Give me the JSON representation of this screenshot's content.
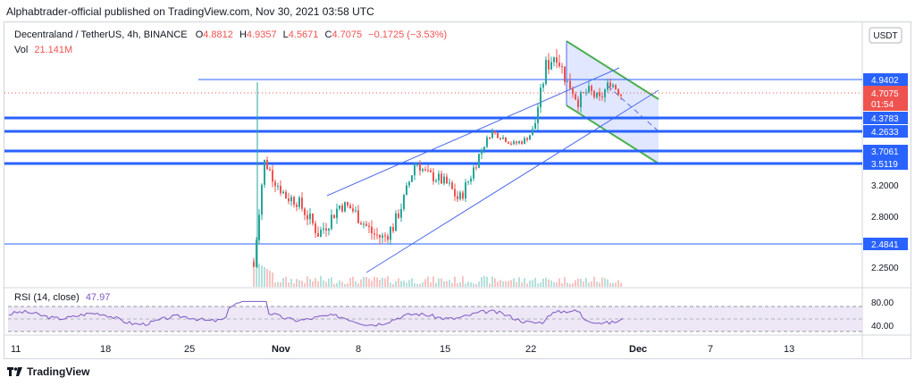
{
  "publisher_line": "Alphabtrader-official published on TradingView.com, Nov 30, 2021 03:58 UTC",
  "symbol_line": {
    "title": "Decentraland / TetherUS, 4h, BINANCE",
    "o_label": "O",
    "o_value": "4.8812",
    "h_label": "H",
    "h_value": "4.9357",
    "l_label": "L",
    "l_value": "4.5671",
    "c_label": "C",
    "c_value": "4.7075",
    "change": "−0.1725 (−3.53%)"
  },
  "volume_line": {
    "label": "Vol",
    "value": "21.141M"
  },
  "currency_button": "USDT",
  "rsi_label": {
    "name": "RSI (14, close)",
    "value": "47.97"
  },
  "rsi_axis": [
    "80.00",
    "40.00"
  ],
  "footer_brand": "TradingView",
  "colors": {
    "bull": "#26a69a",
    "bear": "#ef5350",
    "hline": "#2962ff",
    "channel": "#4f6bed",
    "flag_fill": "#dbe3ff",
    "flag_border": "#4caf50",
    "rsi_line": "#7e57c2",
    "rsi_band": "#ede7f6"
  },
  "chart_data": {
    "type": "candlestick",
    "timeframe": "4h",
    "x_ticks": [
      "11",
      "18",
      "25",
      "Nov",
      "8",
      "15",
      "22",
      "Dec",
      "7",
      "13"
    ],
    "y_ticks": [
      3.2,
      2.8,
      2.25
    ],
    "y_tick_labels": [
      "3.2000",
      "2.8000",
      "2.2500"
    ],
    "ylim": [
      2.05,
      5.35
    ],
    "horizontal_levels": [
      {
        "value": 4.9402,
        "label": "4.9402"
      },
      {
        "value": 4.3783,
        "label": "4.3783"
      },
      {
        "value": 4.2633,
        "label": "4.2633"
      },
      {
        "value": 3.7061,
        "label": "3.7061"
      },
      {
        "value": 3.5119,
        "label": "3.5119"
      },
      {
        "value": 2.4841,
        "label": "2.4841"
      }
    ],
    "current_price": {
      "value": 4.7075,
      "label": "4.7075",
      "countdown": "01:54"
    },
    "close_series_approx": [
      2.25,
      3.55,
      3.25,
      3.05,
      3.0,
      2.8,
      2.6,
      2.75,
      2.95,
      2.9,
      2.75,
      2.6,
      2.55,
      2.7,
      3.05,
      3.55,
      3.35,
      3.3,
      3.2,
      3.0,
      3.3,
      3.7,
      4.25,
      4.1,
      3.9,
      4.0,
      4.3,
      5.05,
      5.2,
      4.9,
      4.6,
      4.75,
      4.6,
      4.9,
      4.7
    ],
    "rsi": {
      "current": 47.97,
      "levels": [
        70,
        30
      ],
      "ylim": [
        20,
        90
      ]
    }
  }
}
